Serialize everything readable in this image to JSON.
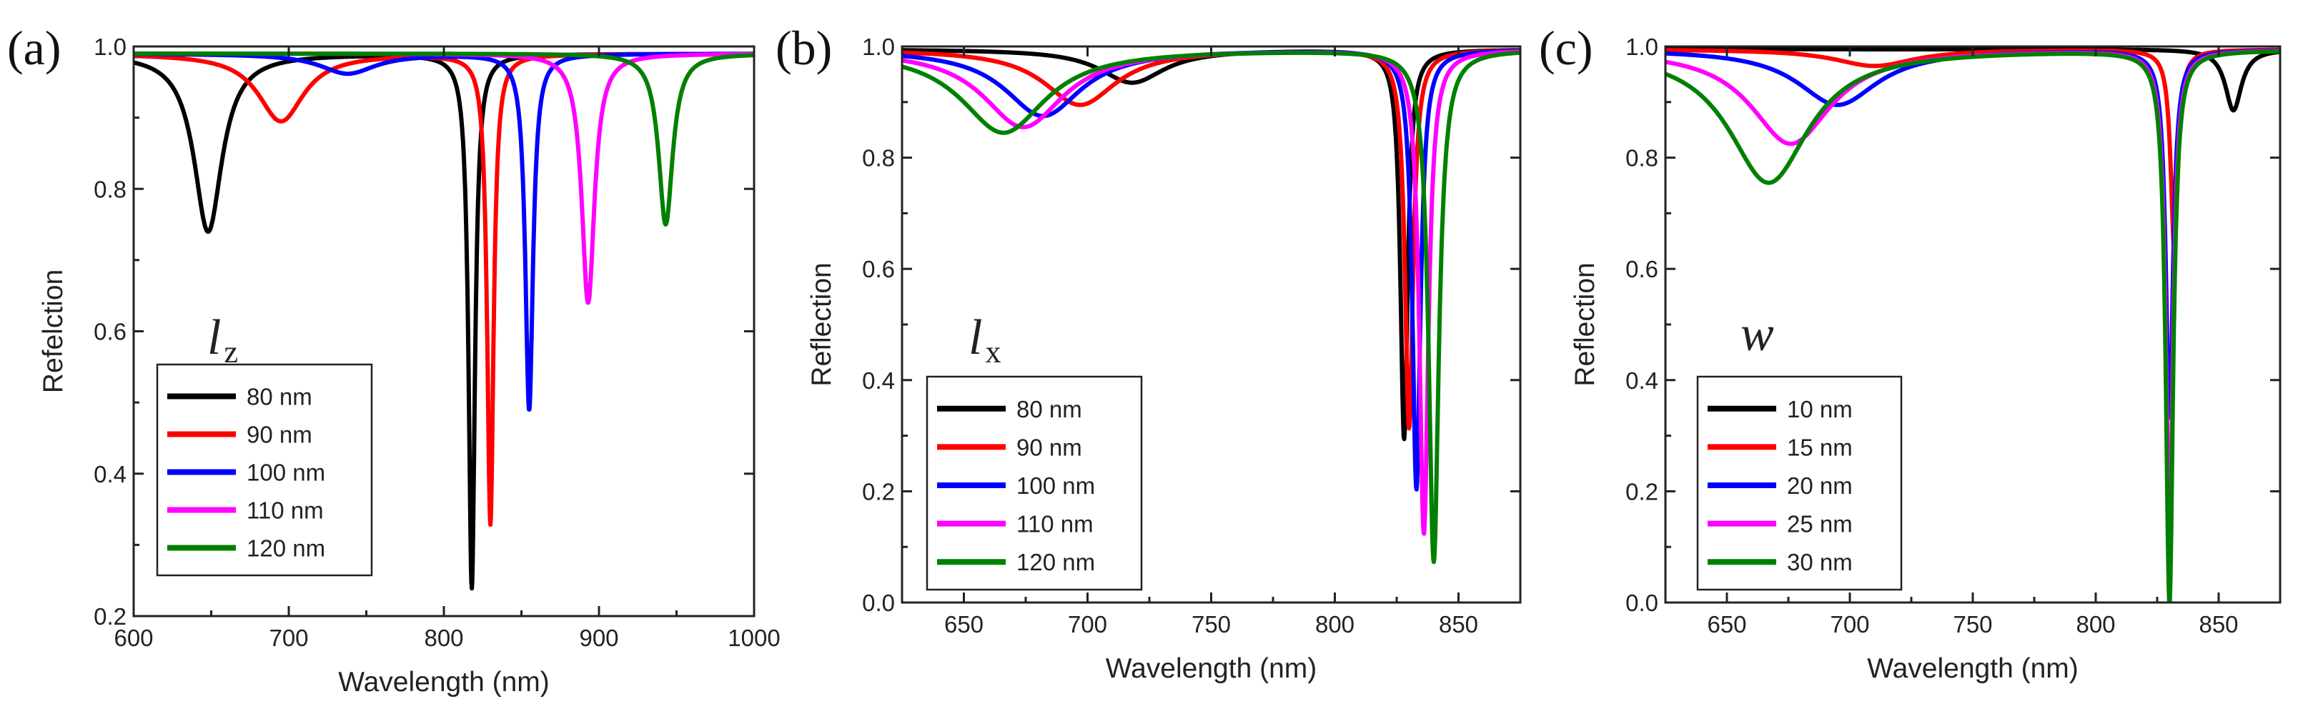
{
  "figure": {
    "colors": {
      "80 nm": "#000000",
      "90 nm": "#ff0000",
      "100 nm": "#0000ff",
      "110 nm": "#ff00ff",
      "120 nm": "#008000",
      "10 nm": "#000000",
      "15 nm": "#ff0000",
      "20 nm": "#0000ff",
      "25 nm": "#ff00ff",
      "30 nm": "#008000"
    }
  },
  "chart_data": [
    {
      "type": "line",
      "panel": "(a)",
      "param_label": "l",
      "param_sub": "z",
      "xlabel": "Wavelength (nm)",
      "ylabel": "Refelction",
      "xlim": [
        600,
        1000
      ],
      "ylim": [
        0.2,
        1.0
      ],
      "xticks": [
        600,
        700,
        800,
        900,
        1000
      ],
      "yticks": [
        0.2,
        0.4,
        0.6,
        0.8,
        1.0
      ],
      "ytick_labels": [
        "0.2",
        "0.4",
        "0.6",
        "0.8",
        "1.0"
      ],
      "legend_title": "",
      "series": [
        {
          "name": "80 nm",
          "baseline": 0.99,
          "dips": [
            [
              648,
              0.25,
              11
            ],
            [
              818,
              0.75,
              2.5
            ]
          ]
        },
        {
          "name": "90 nm",
          "baseline": 0.99,
          "dips": [
            [
              695,
              0.095,
              18
            ],
            [
              830,
              0.66,
              2.5
            ]
          ]
        },
        {
          "name": "100 nm",
          "baseline": 0.99,
          "dips": [
            [
              738,
              0.028,
              22
            ],
            [
              855,
              0.5,
              3
            ]
          ]
        },
        {
          "name": "110 nm",
          "baseline": 0.99,
          "dips": [
            [
              893,
              0.35,
              5
            ]
          ]
        },
        {
          "name": "120 nm",
          "baseline": 0.99,
          "dips": [
            [
              943,
              0.24,
              5.5
            ]
          ]
        }
      ]
    },
    {
      "type": "line",
      "panel": "(b)",
      "param_label": "l",
      "param_sub": "x",
      "xlabel": "Wavelength (nm)",
      "ylabel": "Reflection",
      "xlim": [
        625,
        875
      ],
      "ylim": [
        0.0,
        1.0
      ],
      "xticks": [
        650,
        700,
        750,
        800,
        850
      ],
      "yticks": [
        0.0,
        0.2,
        0.4,
        0.6,
        0.8,
        1.0
      ],
      "ytick_labels": [
        "0.0",
        "0.2",
        "0.4",
        "0.6",
        "0.8",
        "1.0"
      ],
      "series": [
        {
          "name": "80 nm",
          "baseline": 0.995,
          "dips": [
            [
              718,
              0.06,
              16
            ],
            [
              828,
              0.7,
              1.8
            ]
          ]
        },
        {
          "name": "90 nm",
          "baseline": 0.995,
          "dips": [
            [
              697,
              0.1,
              18
            ],
            [
              830,
              0.68,
              2
            ]
          ]
        },
        {
          "name": "100 nm",
          "baseline": 0.995,
          "dips": [
            [
              682,
              0.12,
              19
            ],
            [
              833,
              0.79,
              2
            ]
          ]
        },
        {
          "name": "110 nm",
          "baseline": 0.995,
          "dips": [
            [
              674,
              0.14,
              20
            ],
            [
              836,
              0.87,
              2.2
            ]
          ]
        },
        {
          "name": "120 nm",
          "baseline": 0.995,
          "dips": [
            [
              666,
              0.15,
              21
            ],
            [
              840,
              0.92,
              2.5
            ]
          ]
        }
      ]
    },
    {
      "type": "line",
      "panel": "(c)",
      "param_label": "w",
      "param_sub": "",
      "xlabel": "Wavelength (nm)",
      "ylabel": "Reflection",
      "xlim": [
        625,
        875
      ],
      "ylim": [
        0.0,
        1.0
      ],
      "xticks": [
        650,
        700,
        750,
        800,
        850
      ],
      "yticks": [
        0.0,
        0.2,
        0.4,
        0.6,
        0.8,
        1.0
      ],
      "ytick_labels": [
        "0.0",
        "0.2",
        "0.4",
        "0.6",
        "0.8",
        "1.0"
      ],
      "series": [
        {
          "name": "10 nm",
          "baseline": 0.995,
          "dips": [
            [
              856,
              0.11,
              4
            ]
          ]
        },
        {
          "name": "15 nm",
          "baseline": 0.995,
          "dips": [
            [
              710,
              0.03,
              20
            ],
            [
              832,
              0.36,
              1.8
            ]
          ]
        },
        {
          "name": "20 nm",
          "baseline": 0.995,
          "dips": [
            [
              695,
              0.1,
              20
            ],
            [
              830,
              0.66,
              1.8
            ]
          ]
        },
        {
          "name": "25 nm",
          "baseline": 0.995,
          "dips": [
            [
              676,
              0.17,
              20
            ],
            [
              830,
              0.86,
              1.8
            ]
          ]
        },
        {
          "name": "30 nm",
          "baseline": 0.995,
          "dips": [
            [
              667,
              0.24,
              20
            ],
            [
              830,
              0.995,
              1.8
            ]
          ]
        }
      ]
    }
  ]
}
